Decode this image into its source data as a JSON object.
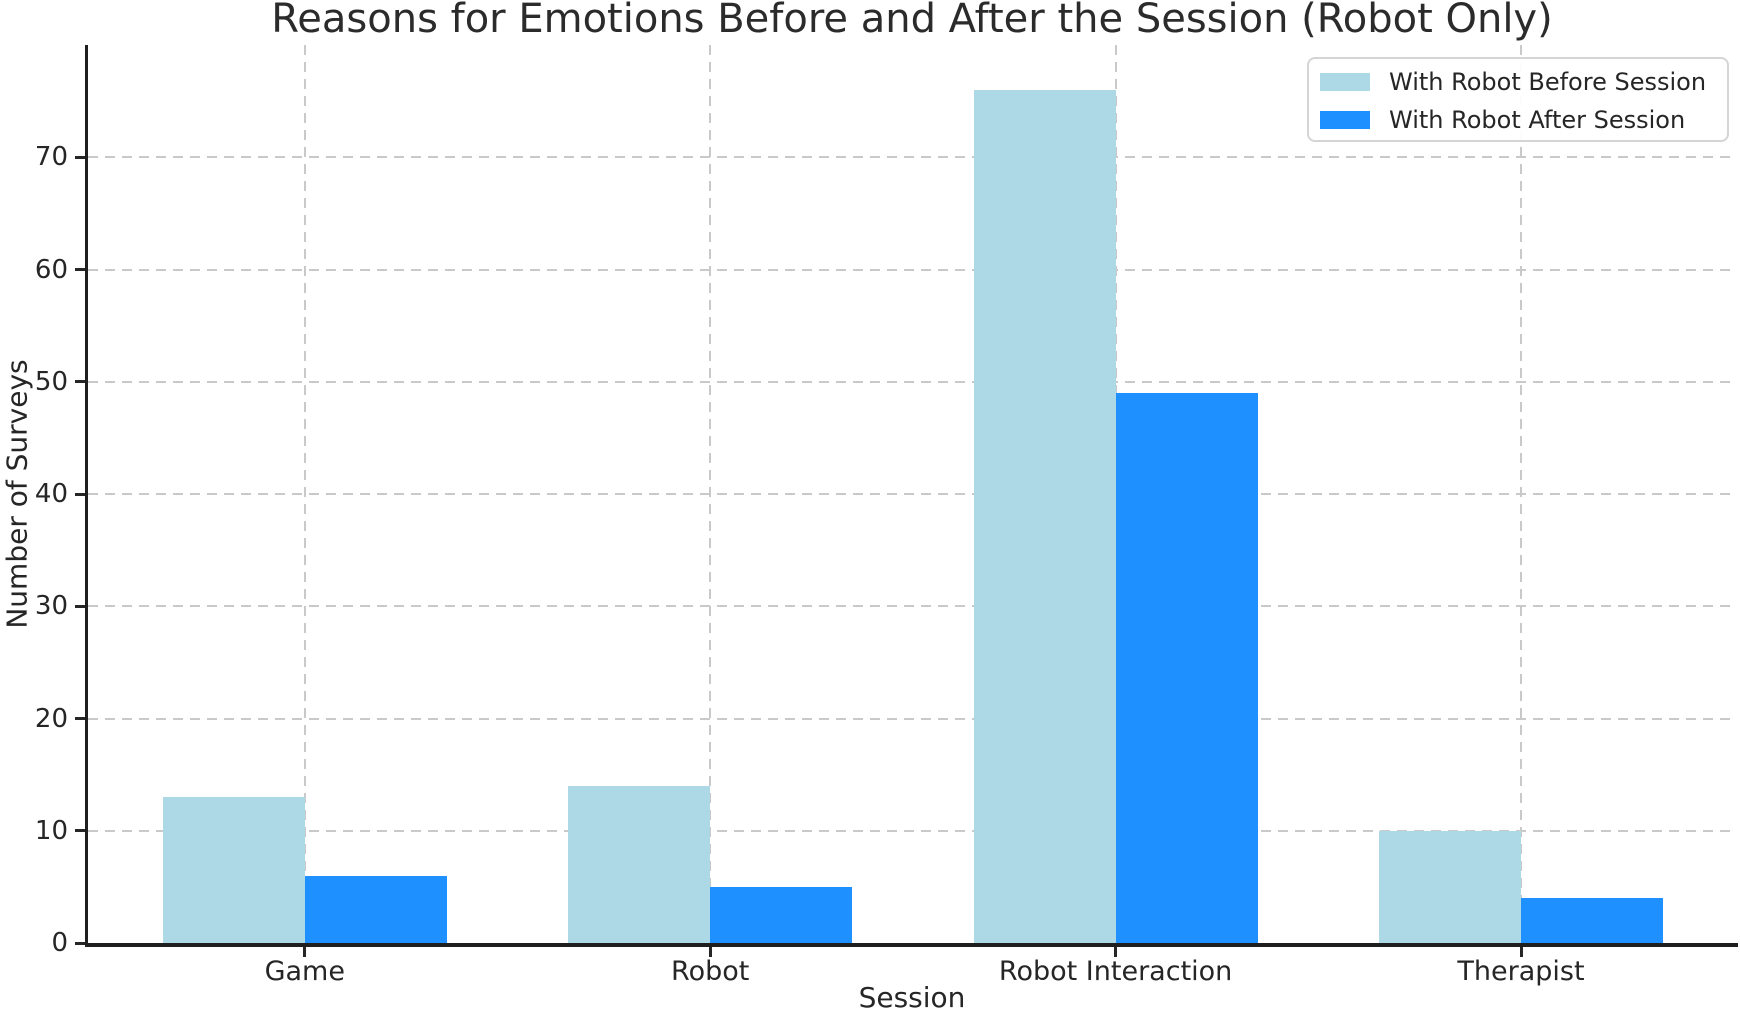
{
  "chart_data": {
    "type": "bar",
    "title": "Reasons for Emotions Before and After the Session (Robot Only)",
    "xlabel": "Session",
    "ylabel": "Number of Surveys",
    "categories": [
      "Game",
      "Robot",
      "Robot Interaction",
      "Therapist"
    ],
    "series": [
      {
        "name": "With Robot Before Session",
        "color": "#ADD8E6",
        "values": [
          13,
          14,
          76,
          10
        ]
      },
      {
        "name": "With Robot After Session",
        "color": "#1E90FF",
        "values": [
          6,
          5,
          49,
          4
        ]
      }
    ],
    "ylim": [
      0,
      80
    ],
    "yticks": [
      0,
      10,
      20,
      30,
      40,
      50,
      60,
      70
    ],
    "grid": "dashed",
    "legend_position": "upper right"
  },
  "colors": {
    "background": "#ffffff",
    "grid": "#c9c9c9",
    "spine": "#1f1f1f",
    "text": "#262626",
    "legend_border": "#d5d5d5",
    "series_before": "#ADD8E6",
    "series_after": "#1E90FF"
  }
}
